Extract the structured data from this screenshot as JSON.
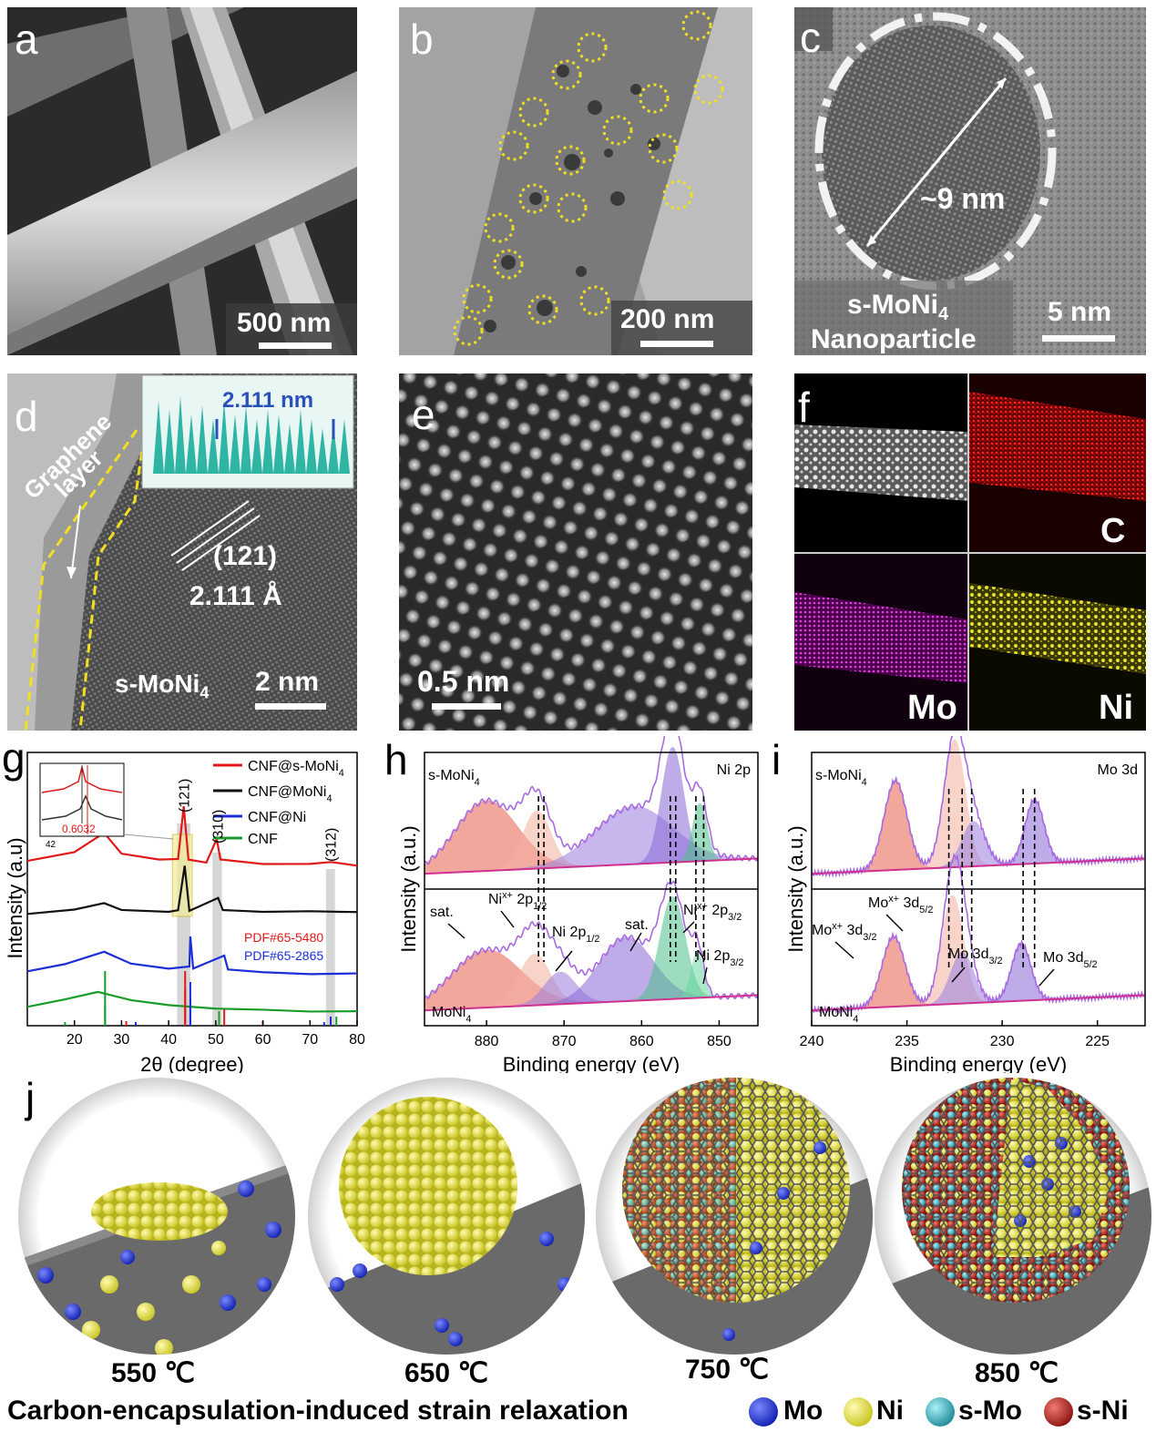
{
  "panels": {
    "a": {
      "label": "a",
      "scale": "500 nm"
    },
    "b": {
      "label": "b",
      "scale": "200 nm"
    },
    "c": {
      "label": "c",
      "size": "~9 nm",
      "name_line1": "s-MoNi",
      "name_sub": "4",
      "name_line2": "Nanoparticle",
      "scale": "5 nm"
    },
    "d": {
      "label": "d",
      "graphene1": "Graphene",
      "graphene2": "layer",
      "plane": "(121)",
      "spacing": "2.111 Å",
      "inset_measure": "2.111 nm",
      "material": "s-MoNi",
      "material_sub": "4",
      "scale": "2 nm"
    },
    "e": {
      "label": "e",
      "scale": "0.5 nm"
    },
    "f": {
      "label": "f",
      "c": "C",
      "mo": "Mo",
      "ni": "Ni"
    },
    "j": {
      "label": "j",
      "temps": [
        "550 ℃",
        "650 ℃",
        "750 ℃",
        "850 ℃"
      ],
      "caption": "Carbon-encapsulation-induced strain relaxation",
      "legend": [
        {
          "name": "Mo",
          "color": "#2a3fd6"
        },
        {
          "name": "Ni",
          "color": "#e6e24a"
        },
        {
          "name": "s-Mo",
          "color": "#3ab7c6"
        },
        {
          "name": "s-Ni",
          "color": "#b8241f"
        }
      ]
    }
  },
  "chart_data": [
    {
      "id": "g",
      "type": "line",
      "label": "g",
      "xlabel": "2θ (degree)",
      "ylabel": "Intensity (a.u)",
      "xlim": [
        10,
        80
      ],
      "xticks": [
        20,
        30,
        40,
        50,
        60,
        70,
        80
      ],
      "series": [
        {
          "name": "CNF@s-MoNi4",
          "color": "#e01818",
          "offset": 3.0,
          "points": [
            [
              10,
              0.62
            ],
            [
              20,
              0.72
            ],
            [
              26.3,
              1.0
            ],
            [
              30,
              0.72
            ],
            [
              38,
              0.62
            ],
            [
              42,
              0.65
            ],
            [
              43.2,
              1.35
            ],
            [
              44.2,
              0.62
            ],
            [
              48,
              0.6
            ],
            [
              50.2,
              0.9
            ],
            [
              51,
              0.62
            ],
            [
              60,
              0.58
            ],
            [
              70,
              0.56
            ],
            [
              74.5,
              0.6
            ],
            [
              80,
              0.55
            ]
          ]
        },
        {
          "name": "CNF@MoNi4",
          "color": "#111111",
          "offset": 2.0,
          "points": [
            [
              10,
              0.55
            ],
            [
              20,
              0.6
            ],
            [
              26.3,
              0.72
            ],
            [
              30,
              0.6
            ],
            [
              40,
              0.58
            ],
            [
              42,
              0.6
            ],
            [
              43.4,
              1.3
            ],
            [
              44.4,
              0.6
            ],
            [
              50.5,
              0.8
            ],
            [
              51.5,
              0.6
            ],
            [
              60,
              0.58
            ],
            [
              70,
              0.58
            ],
            [
              80,
              0.56
            ]
          ]
        },
        {
          "name": "CNF@Ni",
          "color": "#1a2fd8",
          "offset": 1.0,
          "points": [
            [
              10,
              0.5
            ],
            [
              18,
              0.6
            ],
            [
              26.3,
              0.82
            ],
            [
              32,
              0.62
            ],
            [
              40,
              0.55
            ],
            [
              44.4,
              0.58
            ],
            [
              44.6,
              1.05
            ],
            [
              45.2,
              0.55
            ],
            [
              51.8,
              0.75
            ],
            [
              52.6,
              0.52
            ],
            [
              60,
              0.48
            ],
            [
              70,
              0.46
            ],
            [
              80,
              0.45
            ]
          ]
        },
        {
          "name": "CNF",
          "color": "#1a9c2a",
          "offset": 0.0,
          "points": [
            [
              10,
              0.55
            ],
            [
              18,
              0.72
            ],
            [
              25,
              0.9
            ],
            [
              32,
              0.72
            ],
            [
              40,
              0.6
            ],
            [
              50,
              0.52
            ],
            [
              60,
              0.48
            ],
            [
              70,
              0.46
            ],
            [
              80,
              0.45
            ]
          ]
        }
      ],
      "peak_labels": [
        "(121)",
        "(310)",
        "(312)"
      ],
      "ref_labels": [
        {
          "text": "PDF#65-5480",
          "color": "#e01818"
        },
        {
          "text": "PDF#65-2865",
          "color": "#1a2fd8"
        }
      ],
      "inset": {
        "value": "0.6032",
        "tick": "42"
      }
    },
    {
      "id": "h",
      "type": "line",
      "label": "h",
      "xlabel": "Binding energy (eV)",
      "ylabel": "Intensity (a.u.)",
      "xlim": [
        888,
        845
      ],
      "xticks": [
        880,
        870,
        860,
        850
      ],
      "top_label": "s-MoNi4",
      "corner": "Ni 2p",
      "bottom_label": "MoNi4",
      "annotations": [
        "sat.",
        "Nix+ 2p1/2",
        "Ni 2p1/2",
        "sat.",
        "Nix+ 2p3/2",
        "Ni 2p3/2"
      ],
      "top_peaks": [
        [
          880,
          0.55,
          4
        ],
        [
          873.5,
          0.45,
          1.8
        ],
        [
          861,
          0.45,
          5
        ],
        [
          856,
          0.9,
          1.4
        ],
        [
          852.5,
          0.45,
          0.9
        ]
      ],
      "bottom_peaks": [
        [
          880,
          0.45,
          4.5
        ],
        [
          873.8,
          0.4,
          2
        ],
        [
          870.5,
          0.25,
          2
        ],
        [
          862,
          0.5,
          3.5
        ],
        [
          856,
          0.8,
          1.6
        ],
        [
          852.8,
          0.35,
          0.8
        ]
      ]
    },
    {
      "id": "i",
      "type": "line",
      "label": "i",
      "xlabel": "Binding energy (eV)",
      "ylabel": "Intensity (a.u.)",
      "xlim": [
        240,
        222.5
      ],
      "xticks": [
        240,
        235,
        230,
        225
      ],
      "top_label": "s-MoNi4",
      "corner": "Mo 3d",
      "bottom_label": "MoNi4",
      "annotations": [
        "Mox+ 3d3/2",
        "Mox+ 3d5/2",
        "Mo 3d3/2",
        "Mo 3d5/2"
      ],
      "top_peaks": [
        [
          235.6,
          0.7,
          0.6
        ],
        [
          232.5,
          1.0,
          0.55
        ],
        [
          231.5,
          0.35,
          0.6
        ],
        [
          228.3,
          0.5,
          0.5
        ]
      ],
      "bottom_peaks": [
        [
          235.7,
          0.55,
          0.6
        ],
        [
          232.6,
          0.85,
          0.55
        ],
        [
          232.1,
          0.4,
          0.6
        ],
        [
          229,
          0.45,
          0.5
        ]
      ]
    }
  ]
}
